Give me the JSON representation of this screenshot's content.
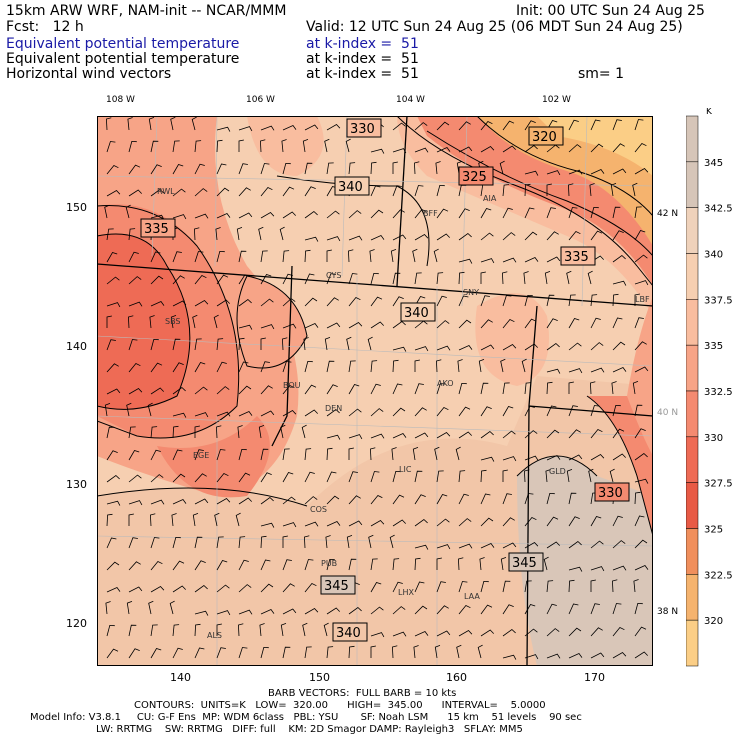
{
  "header": {
    "title_left": "15km ARW WRF, NAM-init -- NCAR/MMM",
    "init": "Init: 00 UTC Sun 24 Aug 25",
    "fcst": "Fcst:   12 h",
    "valid": "Valid: 12 UTC Sun 24 Aug 25 (06 MDT Sun 24 Aug 25)",
    "line1_left": "Equivalent potential temperature",
    "line1_right": "at k-index =  51",
    "line2_left": "Equivalent potential temperature",
    "line2_right": "at k-index =  51",
    "line3_left": "Horizontal wind vectors",
    "line3_right": "at k-index =  51",
    "sm": "sm= 1"
  },
  "map": {
    "top_lon_labels": [
      "108 W",
      "106 W",
      "104 W",
      "102 W"
    ],
    "right_lat_labels": [
      "42 N",
      "40 N",
      "38 N"
    ],
    "left_ticks": [
      "150",
      "140",
      "130",
      "120"
    ],
    "bottom_ticks": [
      "140",
      "150",
      "160",
      "170"
    ],
    "contour_labels": [
      "330",
      "320",
      "325",
      "340",
      "335",
      "335",
      "340",
      "330",
      "345",
      "345",
      "340"
    ],
    "stations": [
      "RWL",
      "BFF",
      "AIA",
      "CYS",
      "SNY",
      "LBF",
      "SBS",
      "BOU",
      "AKO",
      "DEN",
      "EGE",
      "LIC",
      "GLD",
      "COS",
      "PUB",
      "LHX",
      "LAA",
      "ALS"
    ]
  },
  "colorbar": {
    "unit": "K",
    "labels": [
      "345",
      "342.5",
      "340",
      "337.5",
      "335",
      "332.5",
      "330",
      "327.5",
      "325",
      "322.5",
      "320"
    ],
    "colors": [
      "#d6c5b8",
      "#efd2bb",
      "#f6cfb1",
      "#f9bd9f",
      "#f7a487",
      "#f48a70",
      "#ee6b55",
      "#e85a45",
      "#f08f5c",
      "#f5b36e",
      "#fbce86"
    ]
  },
  "footer": {
    "barb": "BARB VECTORS:  FULL BARB = 10 kts",
    "contours": "CONTOURS:  UNITS=K   LOW=  320.00      HIGH=  345.00      INTERVAL=    5.0000",
    "model1": "Model Info: V3.8.1     CU: G-F Ens  MP: WDM 6class   PBL: YSU       SF: Noah LSM      15 km    51 levels    90 sec",
    "model2": "LW: RRTMG    SW: RRTMG   DIFF: full    KM: 2D Smagor DAMP: Rayleigh3   SFLAY: MM5"
  }
}
